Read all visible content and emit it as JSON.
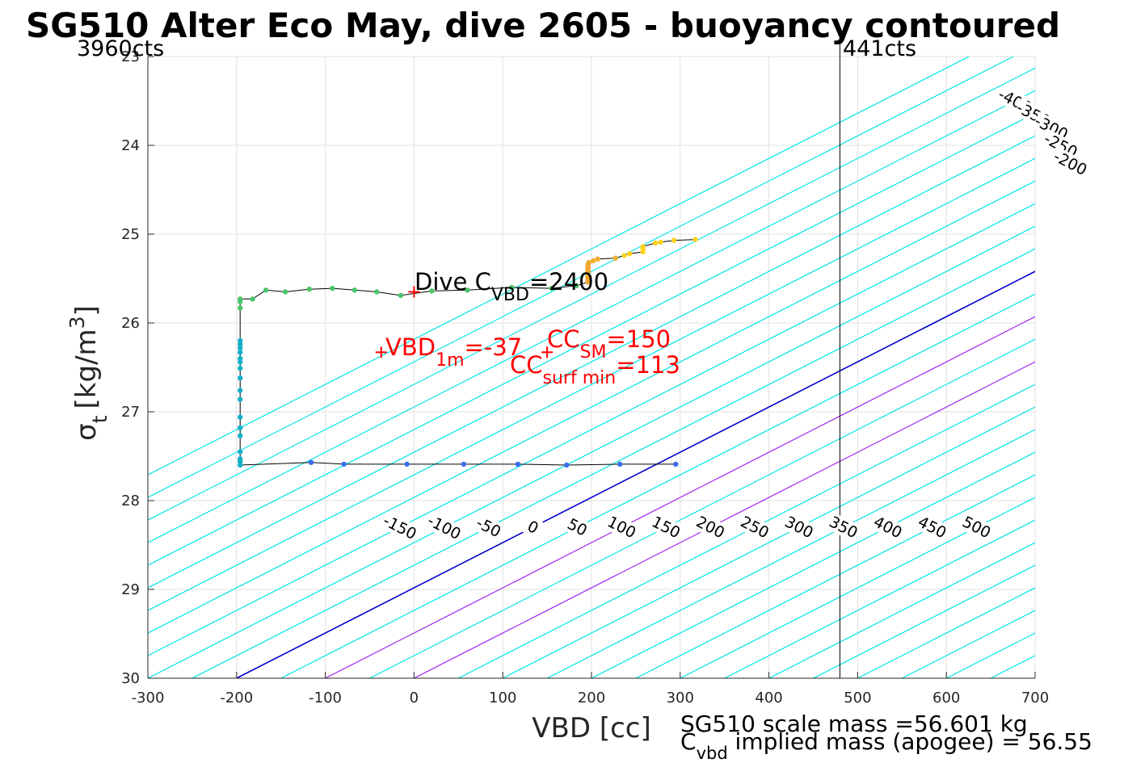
{
  "chart_data": {
    "type": "scatter",
    "title": "SG510 Alter Eco May, dive 2605 - buoyancy contoured",
    "xlabel": "VBD [cc]",
    "ylabel_main": "σ",
    "ylabel_sub": "t",
    "ylabel_unit": "[kg/m",
    "ylabel_sup": "3",
    "ylabel_close": "]",
    "xlim": [
      -300,
      700
    ],
    "ylim": [
      23,
      30
    ],
    "y_reversed": true,
    "grid": true,
    "xticks": [
      "-300",
      "-200",
      "-100",
      "0",
      "100",
      "200",
      "300",
      "400",
      "500",
      "600",
      "700"
    ],
    "yticks": [
      "23",
      "24",
      "25",
      "26",
      "27",
      "28",
      "29",
      "30"
    ],
    "counts_left": "3960cts",
    "counts_right": "441cts",
    "vbd_limit_line_x": 480,
    "contour_levels": [
      -400,
      -350,
      -300,
      -250,
      -200,
      -150,
      -100,
      -50,
      0,
      50,
      100,
      150,
      200,
      250,
      300,
      350,
      400,
      450,
      500
    ],
    "contour_colors": {
      "negative": "#00e5e5",
      "zero": "#0000cc",
      "highlight": "#a020f0",
      "positive": "#00e5e5"
    },
    "contour_labels_top": [
      "-400",
      "-350",
      "-300",
      "-250",
      "-200",
      "-150",
      "-100",
      "-50",
      "0",
      "50",
      "100",
      "150",
      "200",
      "250",
      "300",
      "350",
      "400",
      "450",
      "500"
    ],
    "contour_labels_bottom": [
      "-150",
      "-100",
      "-50",
      "0",
      "50",
      "100",
      "150",
      "200",
      "250",
      "300",
      "350",
      "400",
      "450",
      "500"
    ],
    "series": [
      {
        "values": [
          [
            317,
            25.06
          ],
          [
            293,
            25.07
          ],
          [
            278,
            25.09
          ],
          [
            272,
            25.1
          ],
          [
            258,
            25.14
          ],
          [
            258,
            25.17
          ],
          [
            258,
            25.2
          ],
          [
            243,
            25.22
          ],
          [
            237,
            25.24
          ],
          [
            227,
            25.27
          ],
          [
            207,
            25.28
          ],
          [
            202,
            25.3
          ],
          [
            197,
            25.32
          ],
          [
            196,
            25.34
          ],
          [
            196,
            25.36
          ],
          [
            196,
            25.38
          ],
          [
            196,
            25.4
          ],
          [
            196,
            25.42
          ],
          [
            196,
            25.44
          ],
          [
            196,
            25.46
          ],
          [
            196,
            25.48
          ],
          [
            196,
            25.5
          ],
          [
            196,
            25.52
          ],
          [
            196,
            25.54
          ]
        ]
      },
      {
        "values": [
          [
            183,
            25.58
          ],
          [
            155,
            25.61
          ],
          [
            110,
            25.6
          ],
          [
            60,
            25.63
          ],
          [
            20,
            25.64
          ],
          [
            -15,
            25.69
          ],
          [
            -42,
            25.65
          ],
          [
            -67,
            25.63
          ],
          [
            -92,
            25.61
          ],
          [
            -118,
            25.62
          ],
          [
            -145,
            25.65
          ],
          [
            -167,
            25.63
          ],
          [
            -182,
            25.73
          ],
          [
            -196,
            25.73
          ],
          [
            -196,
            25.76
          ],
          [
            -196,
            25.83
          ]
        ]
      },
      {
        "values": [
          [
            -196,
            26.2
          ],
          [
            -196,
            26.24
          ],
          [
            -196,
            26.28
          ],
          [
            -196,
            26.33
          ],
          [
            -196,
            26.4
          ],
          [
            -196,
            26.44
          ],
          [
            -196,
            26.51
          ],
          [
            -196,
            26.62
          ],
          [
            -196,
            26.76
          ],
          [
            -196,
            26.86
          ],
          [
            -196,
            27.06
          ],
          [
            -196,
            27.18
          ],
          [
            -196,
            27.27
          ],
          [
            -196,
            27.45
          ],
          [
            -196,
            27.53
          ],
          [
            -196,
            27.56
          ],
          [
            -196,
            27.6
          ]
        ]
      },
      {
        "values": [
          [
            -116,
            27.57
          ],
          [
            -79,
            27.59
          ],
          [
            -8,
            27.59
          ],
          [
            56,
            27.59
          ],
          [
            117,
            27.59
          ],
          [
            172,
            27.6
          ],
          [
            232,
            27.59
          ],
          [
            295,
            27.59
          ]
        ]
      }
    ],
    "series_colors": [
      "#ffd21f",
      "#4cc46a",
      "#14b0c8",
      "#3a6df0"
    ],
    "annotations": {
      "dive_c_text": "Dive C",
      "dive_c_sub": "VBD",
      "dive_c_value": "=2400",
      "vbd1m_text": "VBD",
      "vbd1m_sub": "1m",
      "vbd1m_value": "=-37",
      "ccsm_text": "CC",
      "ccsm_sub": "SM",
      "ccsm_value": "=150",
      "ccsurf_text": "CC",
      "ccsurf_sub": "surf min",
      "ccsurf_value": "=113",
      "dive_marker": [
        0,
        25.65
      ],
      "vbd1m_marker": [
        -37,
        26.33
      ],
      "ccsm_marker": [
        150,
        26.33
      ],
      "annotation_color": "#ff0000"
    },
    "footer": {
      "line1": "SG510 scale mass =56.601 kg",
      "line2_prefix": "C",
      "line2_sub": "vbd",
      "line2_rest": " implied mass (apogee) = 56.55"
    }
  }
}
